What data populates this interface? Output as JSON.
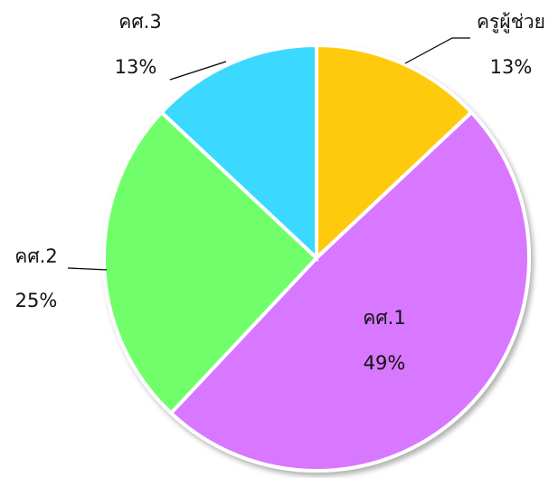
{
  "chart_data": {
    "type": "pie",
    "categories": [
      "ครูผู้ช่วย",
      "คศ.1",
      "คศ.2",
      "คศ.3"
    ],
    "values": [
      13,
      49,
      25,
      13
    ],
    "value_labels": [
      "13%",
      "49%",
      "25%",
      "13%"
    ],
    "colors": [
      "#ffca08",
      "#d877ff",
      "#70ff6b",
      "#3bd8ff"
    ]
  }
}
